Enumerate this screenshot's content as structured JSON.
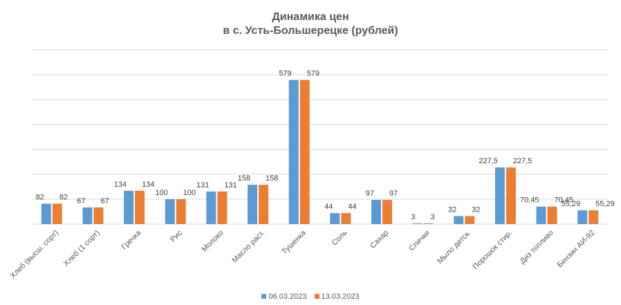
{
  "chart_data": {
    "type": "bar",
    "title": "Динамика цен",
    "subtitle": "в с. Усть-Большерецке (рублей)",
    "categories": [
      "Хлеб (высш. сорт)",
      "Хлеб (1 сорт)",
      "Гречка",
      "Рис",
      "Молоко",
      "Масло раст.",
      "Тушенка",
      "Соль",
      "Сахар",
      "Спички",
      "Мыло детск.",
      "Порошок стир.",
      "Диз топливо",
      "Бензин АИ-92"
    ],
    "series": [
      {
        "name": "06.03.2023",
        "color": "#5b9bd5",
        "values": [
          82,
          67,
          134,
          100,
          131,
          158,
          579,
          44,
          97,
          3,
          32,
          227.5,
          70.45,
          55.29
        ]
      },
      {
        "name": "13.03.2023",
        "color": "#ed7d31",
        "values": [
          82,
          67,
          134,
          100,
          131,
          158,
          579,
          44,
          97,
          3,
          32,
          227.5,
          70.45,
          55.29
        ]
      }
    ],
    "data_labels": [
      [
        "82",
        "67",
        "134",
        "100",
        "131",
        "158",
        "579",
        "44",
        "97",
        "3",
        "32",
        "227,5",
        "70,45",
        "55,29"
      ],
      [
        "82",
        "67",
        "134",
        "100",
        "131",
        "158",
        "579",
        "44",
        "97",
        "3",
        "32",
        "227,5",
        "70,45",
        "55,29"
      ]
    ],
    "ylim": [
      0,
      700
    ],
    "grid": true,
    "legend": "bottom"
  }
}
